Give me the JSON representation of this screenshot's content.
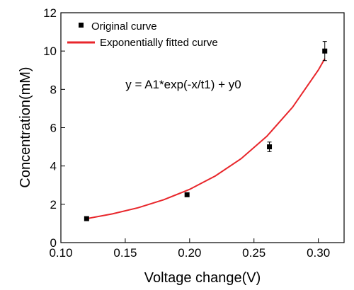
{
  "chart_data": {
    "type": "scatter",
    "xlabel": "Voltage change(V)",
    "ylabel": "Concentration(mM)",
    "xlim": [
      0.1,
      0.32
    ],
    "ylim": [
      0,
      12
    ],
    "xticks": [
      "0.10",
      "0.15",
      "0.20",
      "0.25",
      "0.30"
    ],
    "yticks": [
      "0",
      "2",
      "4",
      "6",
      "8",
      "10",
      "12"
    ],
    "legend_position": "top-left",
    "annotation": "y = A1*exp(-x/t1) + y0",
    "series": [
      {
        "name": "Original curve",
        "kind": "points",
        "marker": "square",
        "color": "#000000",
        "x": [
          0.12,
          0.198,
          0.262,
          0.305
        ],
        "y": [
          1.25,
          2.5,
          5.0,
          10.0
        ],
        "yerr": [
          0.05,
          0.08,
          0.25,
          0.5
        ]
      },
      {
        "name": "Exponentially fitted curve",
        "kind": "line",
        "color": "#e8262b",
        "x": [
          0.12,
          0.14,
          0.16,
          0.18,
          0.2,
          0.22,
          0.24,
          0.26,
          0.28,
          0.3,
          0.305
        ],
        "y": [
          1.25,
          1.5,
          1.82,
          2.24,
          2.78,
          3.48,
          4.38,
          5.55,
          7.07,
          9.01,
          9.6
        ]
      }
    ]
  }
}
